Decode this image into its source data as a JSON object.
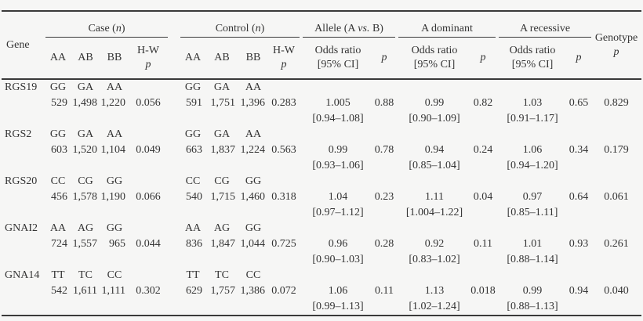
{
  "table": {
    "header": {
      "gene": "Gene",
      "case_group_html": "Case (<i>n</i>)",
      "control_group_html": "Control (<i>n</i>)",
      "allele_group_html": "Allele (A <i>vs.</i> B)",
      "dominant_group": "A dominant",
      "recessive_group": "A recessive",
      "genotype_label": "Genotype",
      "hw_label": "H-W",
      "p_label": "p",
      "or_label_line1": "Odds ratio",
      "or_label_line2": "[95% CI]",
      "genotype_cols": [
        "AA",
        "AB",
        "BB"
      ]
    },
    "rows": [
      {
        "gene": "RGS19",
        "case": {
          "genotypes": [
            "GG",
            "GA",
            "AA"
          ],
          "counts": [
            "529",
            "1,498",
            "1,220"
          ],
          "hw_p": "0.056"
        },
        "control": {
          "genotypes": [
            "GG",
            "GA",
            "AA"
          ],
          "counts": [
            "591",
            "1,751",
            "1,396"
          ],
          "hw_p": "0.283"
        },
        "allele": {
          "or": "1.005",
          "ci": "[0.94–1.08]",
          "p": "0.88"
        },
        "dominant": {
          "or": "0.99",
          "ci": "[0.90–1.09]",
          "p": "0.82"
        },
        "recessive": {
          "or": "1.03",
          "ci": "[0.91–1.17]",
          "p": "0.65"
        },
        "genotype_p": "0.829"
      },
      {
        "gene": "RGS2",
        "case": {
          "genotypes": [
            "GG",
            "GA",
            "AA"
          ],
          "counts": [
            "603",
            "1,520",
            "1,104"
          ],
          "hw_p": "0.049"
        },
        "control": {
          "genotypes": [
            "GG",
            "GA",
            "AA"
          ],
          "counts": [
            "663",
            "1,837",
            "1,224"
          ],
          "hw_p": "0.563"
        },
        "allele": {
          "or": "0.99",
          "ci": "[0.93–1.06]",
          "p": "0.78"
        },
        "dominant": {
          "or": "0.94",
          "ci": "[0.85–1.04]",
          "p": "0.24"
        },
        "recessive": {
          "or": "1.06",
          "ci": "[0.94–1.20]",
          "p": "0.34"
        },
        "genotype_p": "0.179"
      },
      {
        "gene": "RGS20",
        "case": {
          "genotypes": [
            "CC",
            "CG",
            "GG"
          ],
          "counts": [
            "456",
            "1,578",
            "1,190"
          ],
          "hw_p": "0.066"
        },
        "control": {
          "genotypes": [
            "CC",
            "CG",
            "GG"
          ],
          "counts": [
            "540",
            "1,715",
            "1,460"
          ],
          "hw_p": "0.318"
        },
        "allele": {
          "or": "1.04",
          "ci": "[0.97–1.12]",
          "p": "0.23"
        },
        "dominant": {
          "or": "1.11",
          "ci": "[1.004–1.22]",
          "p": "0.04"
        },
        "recessive": {
          "or": "0.97",
          "ci": "[0.85–1.11]",
          "p": "0.64"
        },
        "genotype_p": "0.061"
      },
      {
        "gene": "GNAI2",
        "case": {
          "genotypes": [
            "AA",
            "AG",
            "GG"
          ],
          "counts": [
            "724",
            "1,557",
            "965"
          ],
          "hw_p": "0.044"
        },
        "control": {
          "genotypes": [
            "AA",
            "AG",
            "GG"
          ],
          "counts": [
            "836",
            "1,847",
            "1,044"
          ],
          "hw_p": "0.725"
        },
        "allele": {
          "or": "0.96",
          "ci": "[0.90–1.03]",
          "p": "0.28"
        },
        "dominant": {
          "or": "0.92",
          "ci": "[0.83–1.02]",
          "p": "0.11"
        },
        "recessive": {
          "or": "1.01",
          "ci": "[0.88–1.14]",
          "p": "0.93"
        },
        "genotype_p": "0.261"
      },
      {
        "gene": "GNA14",
        "case": {
          "genotypes": [
            "TT",
            "TC",
            "CC"
          ],
          "counts": [
            "542",
            "1,611",
            "1,111"
          ],
          "hw_p": "0.302"
        },
        "control": {
          "genotypes": [
            "TT",
            "TC",
            "CC"
          ],
          "counts": [
            "629",
            "1,757",
            "1,386"
          ],
          "hw_p": "0.072"
        },
        "allele": {
          "or": "1.06",
          "ci": "[0.99–1.13]",
          "p": "0.11"
        },
        "dominant": {
          "or": "1.13",
          "ci": "[1.02–1.24]",
          "p": "0.018"
        },
        "recessive": {
          "or": "0.99",
          "ci": "[0.88–1.13]",
          "p": "0.94"
        },
        "genotype_p": "0.040"
      }
    ]
  }
}
